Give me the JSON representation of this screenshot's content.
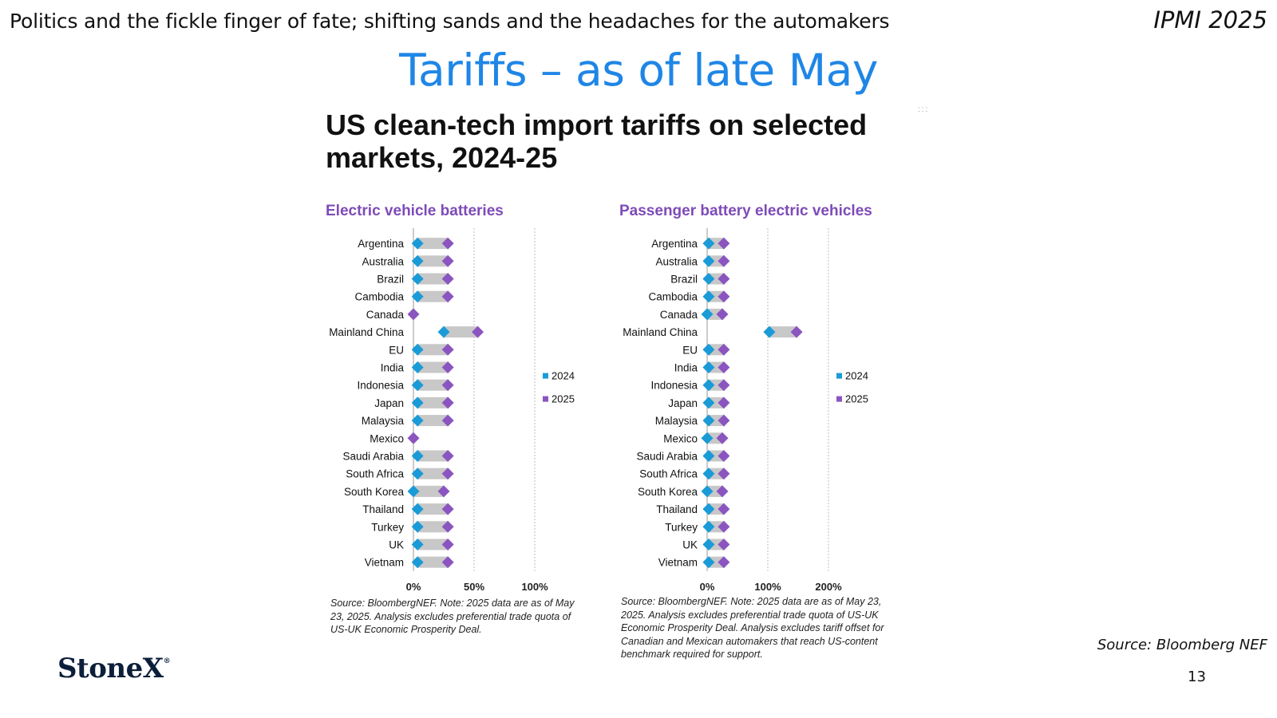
{
  "header": {
    "subtitle": "Politics and the fickle finger of fate; shifting sands and the headaches for the automakers",
    "event": "IPMI 2025",
    "title": "Tariffs – as of late May"
  },
  "chart_heading": "US clean-tech import tariffs on selected markets, 2024-25",
  "colors": {
    "y2024": "#1a9bd7",
    "y2025": "#8b55c0",
    "range_bar": "#c8c8c8",
    "title_blue": "#1f86e6",
    "panel_title": "#7e4bb8"
  },
  "chart_data": [
    {
      "type": "dumbbell",
      "title": "Electric vehicle batteries",
      "categories": [
        "Argentina",
        "Australia",
        "Brazil",
        "Cambodia",
        "Canada",
        "Mainland China",
        "EU",
        "India",
        "Indonesia",
        "Japan",
        "Malaysia",
        "Mexico",
        "Saudi Arabia",
        "South Africa",
        "South Korea",
        "Thailand",
        "Turkey",
        "UK",
        "Vietnam"
      ],
      "series": [
        {
          "name": "2024",
          "values": [
            3.4,
            3.4,
            3.4,
            3.4,
            null,
            25,
            3.4,
            3.4,
            3.4,
            3.4,
            3.4,
            null,
            3.4,
            3.4,
            0,
            3.4,
            3.4,
            3.4,
            3.4
          ]
        },
        {
          "name": "2025",
          "values": [
            28.4,
            28.4,
            28.4,
            28.4,
            0,
            53,
            28.4,
            28.4,
            28.4,
            28.4,
            28.4,
            0,
            28.4,
            28.4,
            25,
            28.4,
            28.4,
            28.4,
            28.4
          ]
        }
      ],
      "x_ticks": [
        "0%",
        "50%",
        "100%"
      ],
      "xlim": [
        0,
        100
      ],
      "grid": true,
      "legend_position": "right",
      "note": "Source: BloombergNEF. Note: 2025 data are as of May 23, 2025. Analysis excludes preferential trade quota of US-UK Economic Prosperity Deal."
    },
    {
      "type": "dumbbell",
      "title": "Passenger battery electric vehicles",
      "categories": [
        "Argentina",
        "Australia",
        "Brazil",
        "Cambodia",
        "Canada",
        "Mainland China",
        "EU",
        "India",
        "Indonesia",
        "Japan",
        "Malaysia",
        "Mexico",
        "Saudi Arabia",
        "South Africa",
        "South Korea",
        "Thailand",
        "Turkey",
        "UK",
        "Vietnam"
      ],
      "series": [
        {
          "name": "2024",
          "values": [
            2.5,
            2.5,
            2.5,
            2.5,
            0,
            102.5,
            2.5,
            2.5,
            2.5,
            2.5,
            2.5,
            0,
            2.5,
            2.5,
            0,
            2.5,
            2.5,
            2.5,
            2.5
          ]
        },
        {
          "name": "2025",
          "values": [
            27.5,
            27.5,
            27.5,
            27.5,
            25,
            147.5,
            27.5,
            27.5,
            27.5,
            27.5,
            27.5,
            25,
            27.5,
            27.5,
            25,
            27.5,
            27.5,
            27.5,
            27.5
          ]
        }
      ],
      "x_ticks": [
        "0%",
        "100%",
        "200%"
      ],
      "xlim": [
        0,
        200
      ],
      "grid": true,
      "legend_position": "right",
      "note": "Source: BloombergNEF. Note: 2025 data are as of May 23, 2025. Analysis excludes preferential trade quota of US-UK Economic Prosperity Deal. Analysis excludes tariff offset for Canadian and Mexican automakers that reach US-content benchmark required for support."
    }
  ],
  "footer": {
    "source": "Source: Bloomberg NEF",
    "page_number": "13",
    "logo": "StoneX",
    "logo_mark": "®"
  }
}
